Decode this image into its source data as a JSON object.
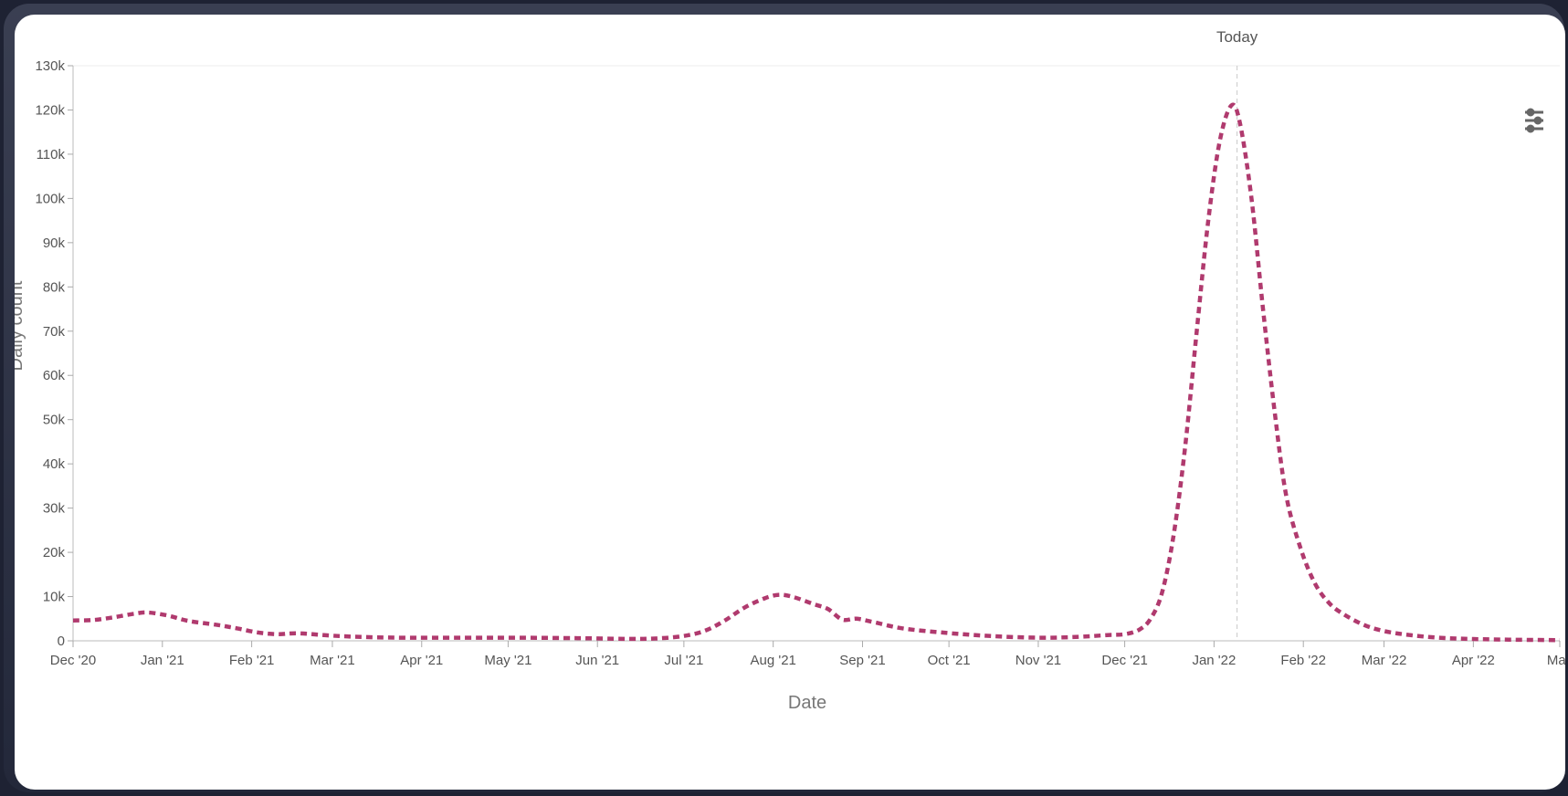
{
  "chart_data": {
    "type": "line",
    "xlabel": "Date",
    "ylabel": "Daily count",
    "x_ticks": [
      "Dec '20",
      "Jan '21",
      "Feb '21",
      "Mar '21",
      "Apr '21",
      "May '21",
      "Jun '21",
      "Jul '21",
      "Aug '21",
      "Sep '21",
      "Oct '21",
      "Nov '21",
      "Dec '21",
      "Jan '22",
      "Feb '22",
      "Mar '22",
      "Apr '22",
      "May"
    ],
    "y_ticks": [
      "0",
      "10k",
      "20k",
      "30k",
      "40k",
      "50k",
      "60k",
      "70k",
      "80k",
      "90k",
      "100k",
      "110k",
      "120k",
      "130k"
    ],
    "xlim": [
      "2020-12-01",
      "2022-05-01"
    ],
    "ylim": [
      0,
      130000
    ],
    "marker": {
      "label": "Today",
      "date": "2022-01-09"
    },
    "series": [
      {
        "color": "#b03a6e",
        "style": "dashed",
        "points": [
          [
            "2020-12-01",
            4600
          ],
          [
            "2020-12-08",
            4700
          ],
          [
            "2020-12-15",
            5300
          ],
          [
            "2020-12-22",
            6100
          ],
          [
            "2020-12-27",
            6400
          ],
          [
            "2021-01-03",
            5700
          ],
          [
            "2021-01-10",
            4500
          ],
          [
            "2021-01-20",
            3600
          ],
          [
            "2021-01-27",
            2800
          ],
          [
            "2021-02-03",
            1900
          ],
          [
            "2021-02-10",
            1500
          ],
          [
            "2021-02-17",
            1700
          ],
          [
            "2021-02-28",
            1200
          ],
          [
            "2021-03-10",
            900
          ],
          [
            "2021-03-25",
            700
          ],
          [
            "2021-04-15",
            700
          ],
          [
            "2021-05-05",
            700
          ],
          [
            "2021-05-25",
            600
          ],
          [
            "2021-06-10",
            450
          ],
          [
            "2021-06-20",
            500
          ],
          [
            "2021-06-30",
            1000
          ],
          [
            "2021-07-08",
            2200
          ],
          [
            "2021-07-15",
            4500
          ],
          [
            "2021-07-22",
            7500
          ],
          [
            "2021-07-29",
            9600
          ],
          [
            "2021-08-03",
            10400
          ],
          [
            "2021-08-08",
            9900
          ],
          [
            "2021-08-15",
            8300
          ],
          [
            "2021-08-20",
            7200
          ],
          [
            "2021-08-25",
            4800
          ],
          [
            "2021-08-30",
            5000
          ],
          [
            "2021-09-05",
            4200
          ],
          [
            "2021-09-15",
            2800
          ],
          [
            "2021-09-30",
            1800
          ],
          [
            "2021-10-15",
            1100
          ],
          [
            "2021-11-01",
            700
          ],
          [
            "2021-11-15",
            900
          ],
          [
            "2021-11-25",
            1300
          ],
          [
            "2021-12-01",
            1500
          ],
          [
            "2021-12-06",
            2500
          ],
          [
            "2021-12-10",
            5000
          ],
          [
            "2021-12-14",
            11000
          ],
          [
            "2021-12-18",
            24000
          ],
          [
            "2021-12-22",
            44000
          ],
          [
            "2021-12-26",
            70000
          ],
          [
            "2021-12-30",
            95000
          ],
          [
            "2022-01-03",
            113000
          ],
          [
            "2022-01-07",
            121000
          ],
          [
            "2022-01-10",
            117000
          ],
          [
            "2022-01-14",
            100000
          ],
          [
            "2022-01-18",
            75000
          ],
          [
            "2022-01-22",
            52000
          ],
          [
            "2022-01-26",
            33000
          ],
          [
            "2022-01-31",
            21000
          ],
          [
            "2022-02-05",
            13000
          ],
          [
            "2022-02-10",
            8500
          ],
          [
            "2022-02-15",
            6000
          ],
          [
            "2022-02-22",
            3600
          ],
          [
            "2022-03-01",
            2200
          ],
          [
            "2022-03-10",
            1300
          ],
          [
            "2022-03-20",
            700
          ],
          [
            "2022-04-01",
            400
          ],
          [
            "2022-04-15",
            250
          ],
          [
            "2022-05-01",
            150
          ]
        ]
      }
    ]
  },
  "controls": {
    "settings_icon": "settings-sliders-icon"
  }
}
